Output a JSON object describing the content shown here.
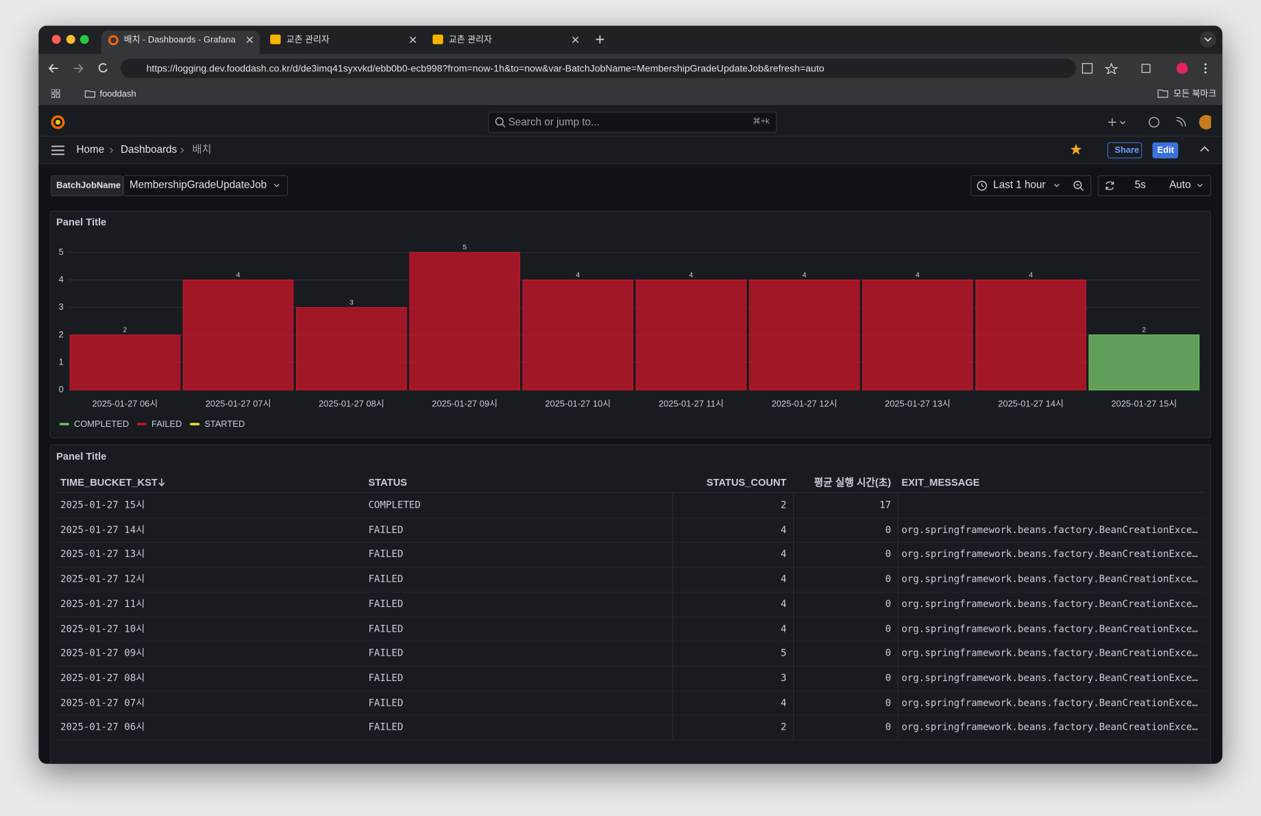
{
  "browser": {
    "tabs": [
      "배치 - Dashboards - Grafana",
      "교촌 관리자",
      "교촌 관리자"
    ],
    "url": "https://logging.dev.fooddash.co.kr/d/de3imq41syxvkd/ebb0b0-ecb998?from=now-1h&to=now&var-BatchJobName=MembershipGradeUpdateJob&refresh=auto",
    "bookmarks": [
      "fooddash"
    ],
    "all_bookmarks": "모든 북마크"
  },
  "header": {
    "search": "Search or jump to...",
    "shortcut": "⌘+k",
    "breadcrumb": [
      "Home",
      "Dashboards",
      "배치"
    ],
    "share": "Share",
    "edit": "Edit"
  },
  "toolbar": {
    "variable_label": "BatchJobName",
    "variable_value": "MembershipGradeUpdateJob",
    "time_range": "Last 1 hour",
    "refresh_interval": "5s",
    "refresh_mode": "Auto"
  },
  "chart_data": {
    "type": "bar",
    "title": "Panel Title",
    "stacked": true,
    "categories": [
      "2025-01-27 06시",
      "2025-01-27 07시",
      "2025-01-27 08시",
      "2025-01-27 09시",
      "2025-01-27 10시",
      "2025-01-27 11시",
      "2025-01-27 12시",
      "2025-01-27 13시",
      "2025-01-27 14시",
      "2025-01-27 15시"
    ],
    "series": [
      {
        "name": "COMPLETED",
        "color": "#73bf69",
        "values": [
          null,
          null,
          null,
          null,
          null,
          null,
          null,
          null,
          null,
          2
        ]
      },
      {
        "name": "FAILED",
        "color": "#c4162a",
        "values": [
          2,
          4,
          3,
          5,
          4,
          4,
          4,
          4,
          4,
          null
        ]
      },
      {
        "name": "STARTED",
        "color": "#fade2a",
        "values": [
          null,
          null,
          null,
          null,
          null,
          null,
          null,
          null,
          null,
          null
        ]
      }
    ],
    "ylim": [
      0,
      5
    ],
    "yticks": [
      0,
      1,
      2,
      3,
      4,
      5
    ],
    "grid": true,
    "legend": "bottom-left"
  },
  "table": {
    "title": "Panel Title",
    "columns": [
      "TIME_BUCKET_KST",
      "STATUS",
      "STATUS_COUNT",
      "평균 실행 시간(초)",
      "EXIT_MESSAGE"
    ],
    "rows": [
      [
        "2025-01-27 15시",
        "COMPLETED",
        2,
        17,
        null
      ],
      [
        "2025-01-27 14시",
        "FAILED",
        4,
        0,
        "org.springframework.beans.factory.BeanCreationExce…"
      ],
      [
        "2025-01-27 13시",
        "FAILED",
        4,
        0,
        "org.springframework.beans.factory.BeanCreationExce…"
      ],
      [
        "2025-01-27 12시",
        "FAILED",
        4,
        0,
        "org.springframework.beans.factory.BeanCreationExce…"
      ],
      [
        "2025-01-27 11시",
        "FAILED",
        4,
        0,
        "org.springframework.beans.factory.BeanCreationExce…"
      ],
      [
        "2025-01-27 10시",
        "FAILED",
        4,
        0,
        "org.springframework.beans.factory.BeanCreationExce…"
      ],
      [
        "2025-01-27 09시",
        "FAILED",
        5,
        0,
        "org.springframework.beans.factory.BeanCreationExce…"
      ],
      [
        "2025-01-27 08시",
        "FAILED",
        3,
        0,
        "org.springframework.beans.factory.BeanCreationExce…"
      ],
      [
        "2025-01-27 07시",
        "FAILED",
        4,
        0,
        "org.springframework.beans.factory.BeanCreationExce…"
      ],
      [
        "2025-01-27 06시",
        "FAILED",
        2,
        0,
        "org.springframework.beans.factory.BeanCreationExce…"
      ]
    ]
  }
}
